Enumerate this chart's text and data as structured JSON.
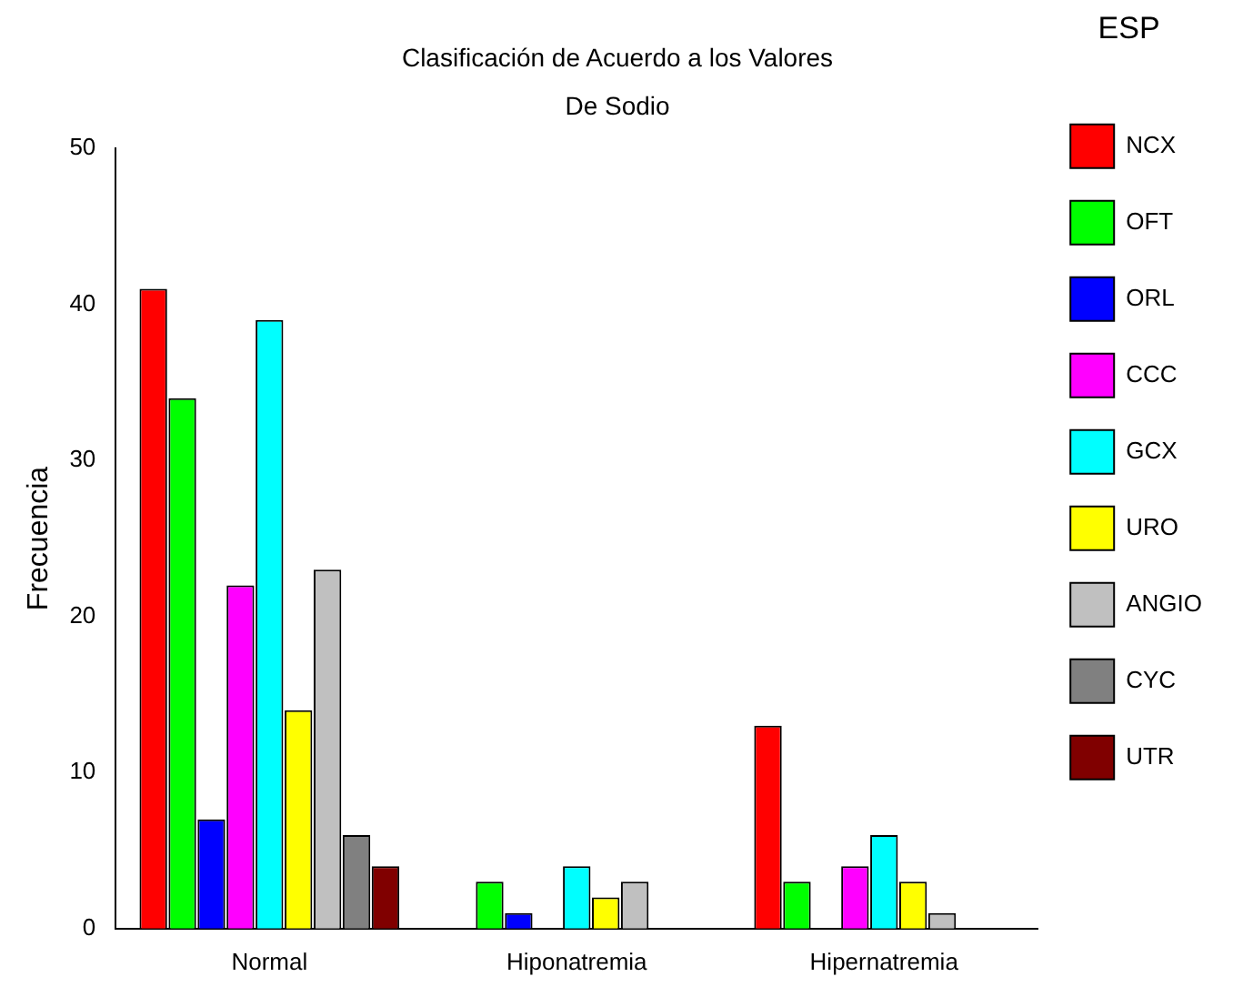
{
  "chart_data": {
    "type": "bar",
    "title": "Clasificación de Acuerdo a los Valores",
    "subtitle": "De Sodio",
    "ylabel": "Frecuencia",
    "legend_title": "ESP",
    "categories": [
      "Normal",
      "Hiponatremia",
      "Hipernatremia"
    ],
    "series": [
      {
        "name": "NCX",
        "color": "#ff0000",
        "values": [
          41,
          0,
          13
        ]
      },
      {
        "name": "OFT",
        "color": "#00ff00",
        "values": [
          34,
          3,
          3
        ]
      },
      {
        "name": "ORL",
        "color": "#0000ff",
        "values": [
          7,
          1,
          0
        ]
      },
      {
        "name": "CCC",
        "color": "#ff00ff",
        "values": [
          22,
          0,
          4
        ]
      },
      {
        "name": "GCX",
        "color": "#00ffff",
        "values": [
          39,
          4,
          6
        ]
      },
      {
        "name": "URO",
        "color": "#ffff00",
        "values": [
          14,
          2,
          3
        ]
      },
      {
        "name": "ANGIO",
        "color": "#c0c0c0",
        "values": [
          23,
          3,
          1
        ]
      },
      {
        "name": "CYC",
        "color": "#808080",
        "values": [
          6,
          0,
          0
        ]
      },
      {
        "name": "UTR",
        "color": "#800000",
        "values": [
          4,
          0,
          0
        ]
      }
    ],
    "ylim": [
      0,
      50
    ],
    "yticks": [
      0,
      10,
      20,
      30,
      40,
      50
    ],
    "grid": false,
    "legend": "right"
  }
}
